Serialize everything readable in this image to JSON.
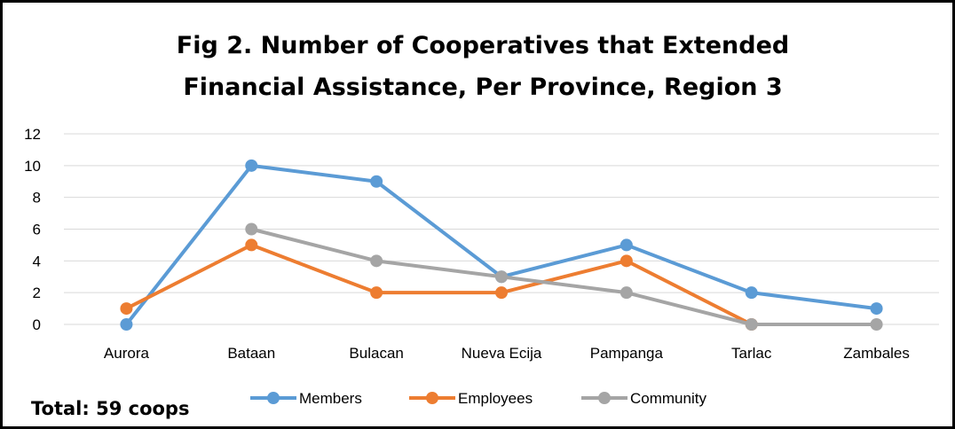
{
  "chart_data": {
    "type": "line",
    "title_line1": "Fig 2. Number of Cooperatives that Extended",
    "title_line2": "Financial Assistance, Per Province, Region 3",
    "categories": [
      "Aurora",
      "Bataan",
      "Bulacan",
      "Nueva Ecija",
      "Pampanga",
      "Tarlac",
      "Zambales"
    ],
    "ylim": [
      0,
      12
    ],
    "yticks": [
      0,
      2,
      4,
      6,
      8,
      10,
      12
    ],
    "grid": true,
    "legend_position": "bottom",
    "series": [
      {
        "name": "Members",
        "color": "#5B9BD5",
        "values": [
          0,
          10,
          9,
          3,
          5,
          2,
          1
        ]
      },
      {
        "name": "Employees",
        "color": "#ED7D31",
        "values": [
          1,
          5,
          2,
          2,
          4,
          0,
          null
        ]
      },
      {
        "name": "Community",
        "color": "#A5A5A5",
        "values": [
          null,
          6,
          4,
          3,
          2,
          0,
          0
        ]
      }
    ],
    "annotation": "Total: 59 coops"
  }
}
